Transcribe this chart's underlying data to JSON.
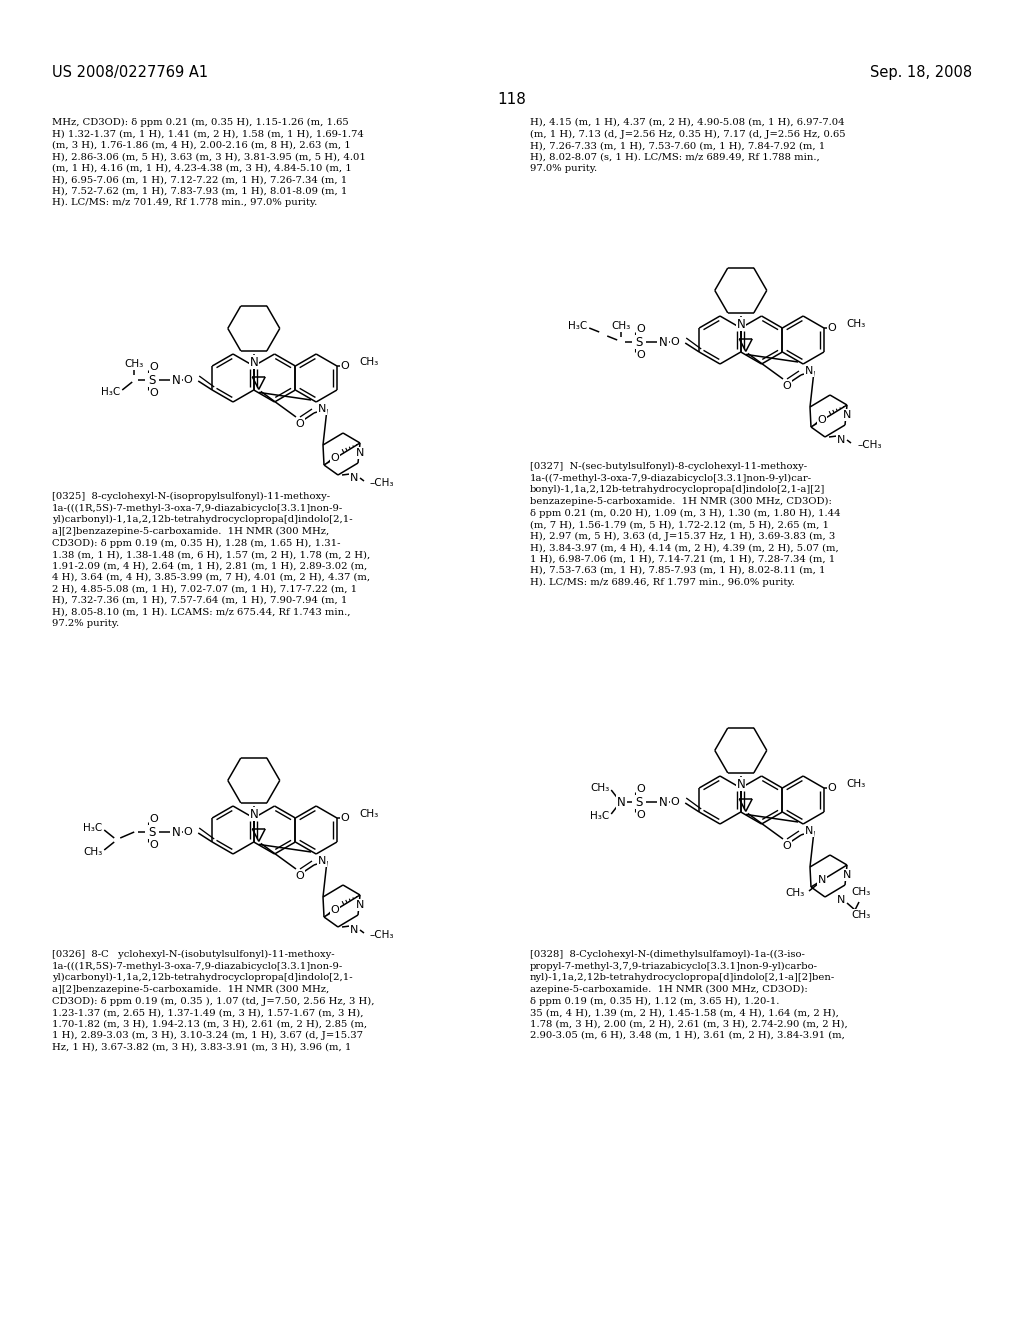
{
  "header_left": "US 2008/0227769 A1",
  "header_right": "Sep. 18, 2008",
  "page_number": "118",
  "bg_color": "#ffffff",
  "text_color": "#000000",
  "font_size_header": 10.5,
  "font_size_body": 7.2,
  "font_size_page": 11,
  "top_text_left": "MHz, CD3OD): δ ppm 0.21 (m, 0.35 H), 1.15-1.26 (m, 1.65\nH) 1.32-1.37 (m, 1 H), 1.41 (m, 2 H), 1.58 (m, 1 H), 1.69-1.74\n(m, 3 H), 1.76-1.86 (m, 4 H), 2.00-2.16 (m, 8 H), 2.63 (m, 1\nH), 2.86-3.06 (m, 5 H), 3.63 (m, 3 H), 3.81-3.95 (m, 5 H), 4.01\n(m, 1 H), 4.16 (m, 1 H), 4.23-4.38 (m, 3 H), 4.84-5.10 (m, 1\nH), 6.95-7.06 (m, 1 H), 7.12-7.22 (m, 1 H), 7.26-7.34 (m, 1\nH), 7.52-7.62 (m, 1 H), 7.83-7.93 (m, 1 H), 8.01-8.09 (m, 1\nH). LC/MS: m/z 701.49, Rf 1.778 min., 97.0% purity.",
  "top_text_right": "H), 4.15 (m, 1 H), 4.37 (m, 2 H), 4.90-5.08 (m, 1 H), 6.97-7.04\n(m, 1 H), 7.13 (d, J=2.56 Hz, 0.35 H), 7.17 (d, J=2.56 Hz, 0.65\nH), 7.26-7.33 (m, 1 H), 7.53-7.60 (m, 1 H), 7.84-7.92 (m, 1\nH), 8.02-8.07 (s, 1 H). LC/MS: m/z 689.49, Rf 1.788 min.,\n97.0% purity.",
  "caption_325": "[0325]  8-cyclohexyl-N-(isopropylsulfonyl)-11-methoxy-\n1a-(((1R,5S)-7-methyl-3-oxa-7,9-diazabicyclo[3.3.1]non-9-\nyl)carbonyl)-1,1a,2,12b-tetrahydrocyclopropa[d]indolo[2,1-\na][2]benzazepine-5-carboxamide.  1H NMR (300 MHz,\nCD3OD): δ ppm 0.19 (m, 0.35 H), 1.28 (m, 1.65 H), 1.31-\n1.38 (m, 1 H), 1.38-1.48 (m, 6 H), 1.57 (m, 2 H), 1.78 (m, 2 H),\n1.91-2.09 (m, 4 H), 2.64 (m, 1 H), 2.81 (m, 1 H), 2.89-3.02 (m,\n4 H), 3.64 (m, 4 H), 3.85-3.99 (m, 7 H), 4.01 (m, 2 H), 4.37 (m,\n2 H), 4.85-5.08 (m, 1 H), 7.02-7.07 (m, 1 H), 7.17-7.22 (m, 1\nH), 7.32-7.36 (m, 1 H), 7.57-7.64 (m, 1 H), 7.90-7.94 (m, 1\nH), 8.05-8.10 (m, 1 H). LCAMS: m/z 675.44, Rf 1.743 min.,\n97.2% purity.",
  "caption_326": "[0326]  8-C   yclohexyl-N-(isobutylsulfonyl)-11-methoxy-\n1a-(((1R,5S)-7-methyl-3-oxa-7,9-diazabicyclo[3.3.1]non-9-\nyl)carbonyl)-1,1a,2,12b-tetrahydrocyclopropa[d]indolo[2,1-\na][2]benzazepine-5-carboxamide.  1H NMR (300 MHz,\nCD3OD): δ ppm 0.19 (m, 0.35 ), 1.07 (td, J=7.50, 2.56 Hz, 3 H),\n1.23-1.37 (m, 2.65 H), 1.37-1.49 (m, 3 H), 1.57-1.67 (m, 3 H),\n1.70-1.82 (m, 3 H), 1.94-2.13 (m, 3 H), 2.61 (m, 2 H), 2.85 (m,\n1 H), 2.89-3.03 (m, 3 H), 3.10-3.24 (m, 1 H), 3.67 (d, J=15.37\nHz, 1 H), 3.67-3.82 (m, 3 H), 3.83-3.91 (m, 3 H), 3.96 (m, 1",
  "caption_327": "[0327]  N-(sec-butylsulfonyl)-8-cyclohexyl-11-methoxy-\n1a-((7-methyl-3-oxa-7,9-diazabicyclo[3.3.1]non-9-yl)car-\nbonyl)-1,1a,2,12b-tetrahydrocyclopropa[d]indolo[2,1-a][2]\nbenzazepine-5-carboxamide.  1H NMR (300 MHz, CD3OD):\nδ ppm 0.21 (m, 0.20 H), 1.09 (m, 3 H), 1.30 (m, 1.80 H), 1.44\n(m, 7 H), 1.56-1.79 (m, 5 H), 1.72-2.12 (m, 5 H), 2.65 (m, 1\nH), 2.97 (m, 5 H), 3.63 (d, J=15.37 Hz, 1 H), 3.69-3.83 (m, 3\nH), 3.84-3.97 (m, 4 H), 4.14 (m, 2 H), 4.39 (m, 2 H), 5.07 (m,\n1 H), 6.98-7.06 (m, 1 H), 7.14-7.21 (m, 1 H), 7.28-7.34 (m, 1\nH), 7.53-7.63 (m, 1 H), 7.85-7.93 (m, 1 H), 8.02-8.11 (m, 1\nH). LC/MS: m/z 689.46, Rf 1.797 min., 96.0% purity.",
  "caption_328": "[0328]  8-Cyclohexyl-N-(dimethylsulfamoyl)-1a-((3-iso-\npropyl-7-methyl-3,7,9-triazabicyclo[3.3.1]non-9-yl)carbo-\nnyl)-1,1a,2,12b-tetrahydrocyclopropa[d]indolo[2,1-a][2]ben-\nazepine-5-carboxamide.  1H NMR (300 MHz, CD3OD):\nδ ppm 0.19 (m, 0.35 H), 1.12 (m, 3.65 H), 1.20-1.\n35 (m, 4 H), 1.39 (m, 2 H), 1.45-1.58 (m, 4 H), 1.64 (m, 2 H),\n1.78 (m, 3 H), 2.00 (m, 2 H), 2.61 (m, 3 H), 2.74-2.90 (m, 2 H),\n2.90-3.05 (m, 6 H), 3.48 (m, 1 H), 3.61 (m, 2 H), 3.84-3.91 (m,"
}
